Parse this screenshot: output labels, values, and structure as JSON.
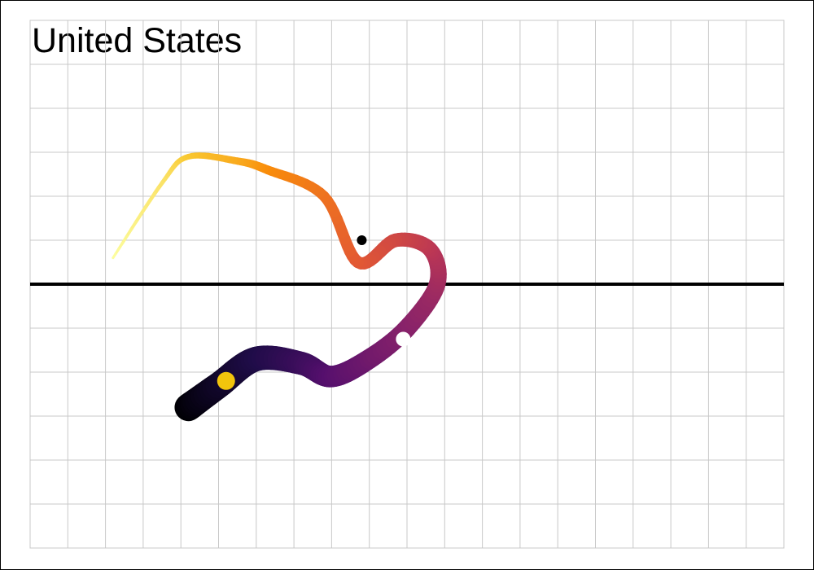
{
  "chart_data": {
    "type": "line",
    "title": "United States",
    "xlabel": "",
    "ylabel": "",
    "grid": true,
    "xlim": [
      0,
      20
    ],
    "ylim": [
      -6,
      6
    ],
    "baseline_y": 0,
    "colormap_start": "#000004",
    "colormap_end": "#fcffa4",
    "series": [
      {
        "points": [
          [
            4.2,
            -2.8
          ],
          [
            5.0,
            -2.3
          ],
          [
            6.0,
            -1.7
          ],
          [
            7.2,
            -1.8
          ],
          [
            8.0,
            -2.1
          ],
          [
            9.0,
            -1.7
          ],
          [
            10.0,
            -1.0
          ],
          [
            10.8,
            0.0
          ],
          [
            10.6,
            0.8
          ],
          [
            9.7,
            1.0
          ],
          [
            8.7,
            0.5
          ],
          [
            7.8,
            2.0
          ],
          [
            6.3,
            2.6
          ],
          [
            5.5,
            2.8
          ],
          [
            4.2,
            2.9
          ],
          [
            3.5,
            2.3
          ],
          [
            2.2,
            0.6
          ]
        ]
      }
    ],
    "markers": [
      {
        "x": 5.2,
        "y": -2.2,
        "color": "#f2c40c",
        "radius": 11
      },
      {
        "x": 8.8,
        "y": 1.0,
        "color": "#000000",
        "radius": 6
      },
      {
        "x": 9.9,
        "y": -1.25,
        "color": "#ffffff",
        "radius": 9
      }
    ]
  }
}
